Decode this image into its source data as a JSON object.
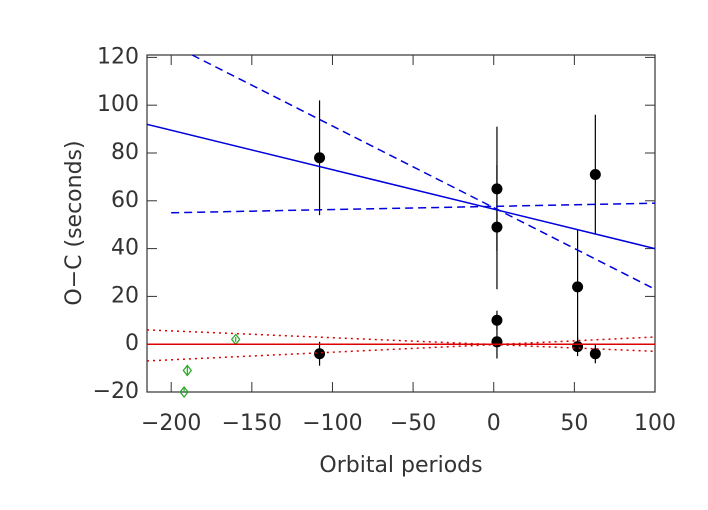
{
  "chart_data": {
    "type": "scatter",
    "x_label": "Orbital periods",
    "y_label": "O−C (seconds)",
    "xlim": [
      -215,
      100
    ],
    "ylim": [
      -20,
      121
    ],
    "xticks": [
      {
        "value": -200,
        "label": "−200"
      },
      {
        "value": -150,
        "label": "−150"
      },
      {
        "value": -100,
        "label": "−100"
      },
      {
        "value": -50,
        "label": "−50"
      },
      0,
      50,
      100
    ],
    "yticks": [
      {
        "value": -20,
        "label": "−20"
      },
      0,
      20,
      40,
      60,
      80,
      100,
      120
    ],
    "series": [
      {
        "kind": "errorbar",
        "color": "#000000",
        "marker": "circle",
        "x": [
          -108,
          -108,
          2,
          2,
          2,
          2,
          52,
          52,
          63,
          63
        ],
        "values": [
          78,
          -4,
          65,
          49,
          10,
          1,
          24,
          -1,
          71,
          -4
        ],
        "errors": [
          24,
          5,
          26,
          26,
          4,
          7,
          24,
          4,
          25,
          4
        ]
      },
      {
        "kind": "errorbar",
        "color": "#22aa22",
        "marker": "diamond",
        "x": [
          -190,
          -192,
          -160
        ],
        "values": [
          -11,
          -20,
          2
        ],
        "errors": [
          2,
          2,
          1
        ]
      },
      {
        "kind": "line",
        "color": "#0000dd",
        "dash": "solid",
        "x": [
          -215,
          100
        ],
        "values": [
          92,
          40
        ]
      },
      {
        "kind": "line",
        "color": "#0000dd",
        "dash": "dashed",
        "x": [
          -187,
          100
        ],
        "values": [
          121,
          23
        ]
      },
      {
        "kind": "line",
        "color": "#0000dd",
        "dash": "dashed",
        "x": [
          -200,
          100
        ],
        "values": [
          55,
          59
        ]
      },
      {
        "kind": "line",
        "color": "#dd0000",
        "dash": "solid",
        "x": [
          -215,
          100
        ],
        "values": [
          0,
          0
        ]
      },
      {
        "kind": "line",
        "color": "#dd0000",
        "dash": "dotted",
        "x": [
          -215,
          100
        ],
        "values": [
          6,
          -3
        ]
      },
      {
        "kind": "line",
        "color": "#dd0000",
        "dash": "dotted",
        "x": [
          -215,
          100
        ],
        "values": [
          -7,
          3
        ]
      }
    ]
  }
}
